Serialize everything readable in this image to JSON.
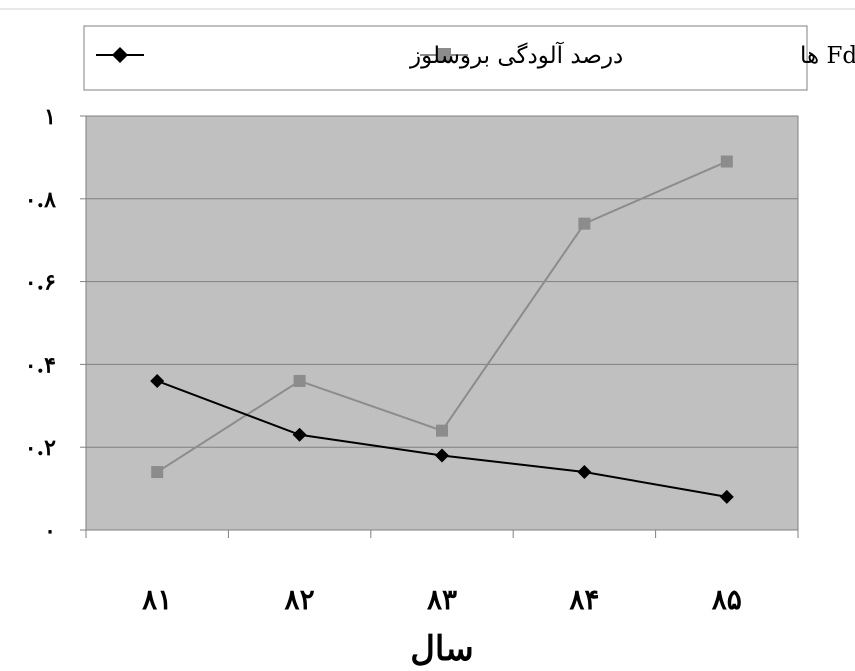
{
  "chart_data": {
    "type": "line",
    "categories": [
      "۸۱",
      "۸۲",
      "۸۳",
      "۸۴",
      "۸۵"
    ],
    "xlabel": "سال",
    "ylabel": "",
    "ylim": [
      0,
      1
    ],
    "yticks": [
      {
        "value": 0,
        "label": "۰"
      },
      {
        "value": 0.2,
        "label": "۰.۲"
      },
      {
        "value": 0.4,
        "label": "۰.۴"
      },
      {
        "value": 0.6,
        "label": "۰.۶"
      },
      {
        "value": 0.8,
        "label": "۰.۸"
      },
      {
        "value": 1,
        "label": "۱"
      }
    ],
    "grid": true,
    "legend_position": "top",
    "series": [
      {
        "name": "نسبت FdRB۵۱ به کل Fd ها",
        "marker": "square",
        "color": "#8c8c8c",
        "values": [
          0.14,
          0.36,
          0.24,
          0.74,
          0.89
        ]
      },
      {
        "name": "درصد آلودگی بروسلوز",
        "marker": "diamond",
        "color": "#000000",
        "values": [
          0.36,
          0.23,
          0.18,
          0.14,
          0.08
        ]
      }
    ],
    "plot_background": "#c0c0c0"
  }
}
